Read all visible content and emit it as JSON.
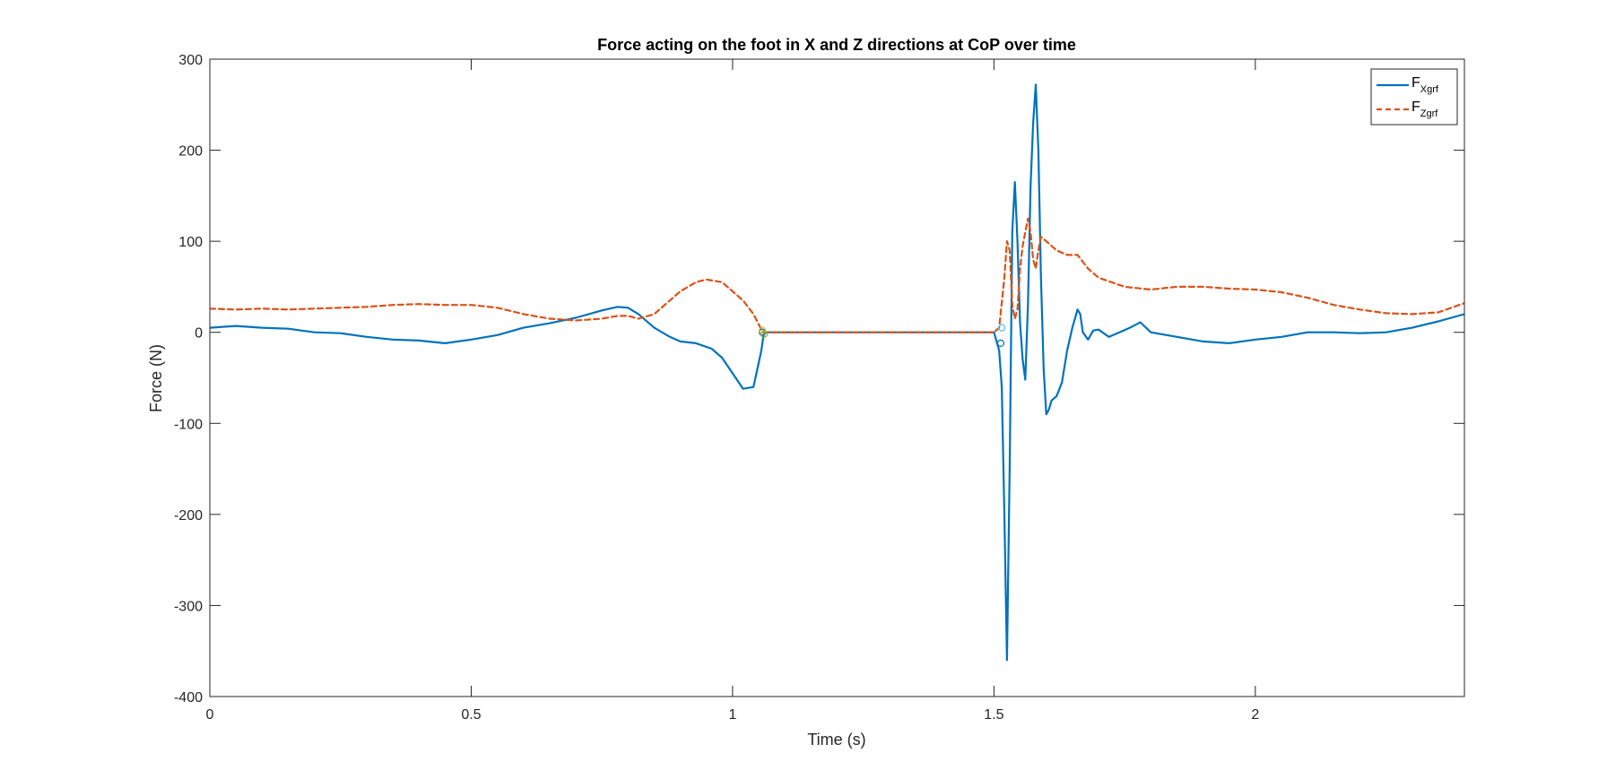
{
  "chart_data": {
    "type": "line",
    "title": "Force acting on the foot in X and Z directions at CoP over time",
    "xlabel": "Time (s)",
    "ylabel": "Force (N)",
    "xlim": [
      0,
      2.4
    ],
    "ylim": [
      -400,
      300
    ],
    "xticks": [
      0,
      0.5,
      1,
      1.5,
      2
    ],
    "xtick_labels": [
      "0",
      "0.5",
      "1",
      "1.5",
      "2"
    ],
    "yticks": [
      -400,
      -300,
      -200,
      -100,
      0,
      100,
      200,
      300
    ],
    "ytick_labels": [
      "-400",
      "-300",
      "-200",
      "-100",
      "0",
      "100",
      "200",
      "300"
    ],
    "grid": false,
    "legend_position": "top-right",
    "series": [
      {
        "name": "F",
        "name_subscript": "Xgrf",
        "color": "#0072BD",
        "style": "solid",
        "x": [
          0,
          0.05,
          0.1,
          0.15,
          0.2,
          0.25,
          0.3,
          0.35,
          0.4,
          0.45,
          0.5,
          0.55,
          0.6,
          0.65,
          0.7,
          0.75,
          0.78,
          0.8,
          0.82,
          0.85,
          0.88,
          0.9,
          0.93,
          0.96,
          0.98,
          1.0,
          1.02,
          1.04,
          1.055,
          1.06,
          1.1,
          1.2,
          1.3,
          1.4,
          1.5,
          1.51,
          1.515,
          1.52,
          1.525,
          1.53,
          1.535,
          1.54,
          1.545,
          1.55,
          1.555,
          1.56,
          1.565,
          1.57,
          1.575,
          1.58,
          1.585,
          1.59,
          1.595,
          1.6,
          1.605,
          1.61,
          1.62,
          1.63,
          1.64,
          1.65,
          1.66,
          1.665,
          1.67,
          1.68,
          1.69,
          1.7,
          1.72,
          1.74,
          1.76,
          1.78,
          1.8,
          1.85,
          1.9,
          1.95,
          2.0,
          2.05,
          2.1,
          2.15,
          2.2,
          2.25,
          2.3,
          2.35,
          2.4
        ],
        "y": [
          5,
          7,
          5,
          4,
          0,
          -1,
          -5,
          -8,
          -9,
          -12,
          -8,
          -3,
          5,
          10,
          16,
          24,
          28,
          27,
          20,
          5,
          -5,
          -10,
          -12,
          -18,
          -28,
          -45,
          -62,
          -60,
          -20,
          0,
          0,
          0,
          0,
          0,
          0,
          -20,
          -60,
          -200,
          -360,
          -150,
          110,
          165,
          100,
          10,
          -30,
          -52,
          30,
          160,
          230,
          272,
          200,
          60,
          -40,
          -90,
          -85,
          -75,
          -70,
          -55,
          -20,
          5,
          25,
          20,
          0,
          -8,
          2,
          3,
          -5,
          0,
          5,
          11,
          0,
          -5,
          -10,
          -12,
          -8,
          -5,
          0,
          0,
          -1,
          0,
          5,
          12,
          20
        ]
      },
      {
        "name": "F",
        "name_subscript": "Zgrf",
        "color": "#D95319",
        "style": "dashed",
        "x": [
          0,
          0.05,
          0.1,
          0.15,
          0.2,
          0.25,
          0.3,
          0.35,
          0.4,
          0.45,
          0.5,
          0.55,
          0.6,
          0.65,
          0.7,
          0.75,
          0.78,
          0.8,
          0.82,
          0.85,
          0.88,
          0.9,
          0.93,
          0.95,
          0.98,
          1.0,
          1.02,
          1.04,
          1.055,
          1.06,
          1.1,
          1.2,
          1.3,
          1.4,
          1.5,
          1.51,
          1.52,
          1.525,
          1.53,
          1.535,
          1.54,
          1.545,
          1.55,
          1.555,
          1.56,
          1.565,
          1.57,
          1.575,
          1.58,
          1.585,
          1.59,
          1.6,
          1.62,
          1.64,
          1.66,
          1.68,
          1.7,
          1.75,
          1.8,
          1.85,
          1.9,
          1.95,
          2.0,
          2.05,
          2.1,
          2.15,
          2.2,
          2.25,
          2.3,
          2.35,
          2.4
        ],
        "y": [
          26,
          25,
          26,
          25,
          26,
          27,
          28,
          30,
          31,
          30,
          30,
          27,
          20,
          15,
          13,
          15,
          18,
          18,
          15,
          20,
          35,
          45,
          55,
          58,
          55,
          45,
          35,
          20,
          3,
          0,
          0,
          0,
          0,
          0,
          0,
          5,
          60,
          100,
          90,
          30,
          15,
          25,
          70,
          95,
          110,
          125,
          110,
          80,
          70,
          90,
          105,
          100,
          90,
          85,
          85,
          70,
          60,
          50,
          47,
          50,
          50,
          48,
          47,
          44,
          38,
          30,
          25,
          21,
          20,
          22,
          32
        ]
      }
    ],
    "markers": [
      {
        "x": 1.057,
        "y": 0,
        "color": "#0072BD"
      },
      {
        "x": 1.06,
        "y": -2,
        "color": "#77AC30"
      },
      {
        "x": 1.057,
        "y": 2,
        "color": "#EDB120"
      },
      {
        "x": 1.513,
        "y": -12,
        "color": "#0072BD"
      },
      {
        "x": 1.515,
        "y": 5,
        "color": "#4DBEEE"
      }
    ]
  }
}
